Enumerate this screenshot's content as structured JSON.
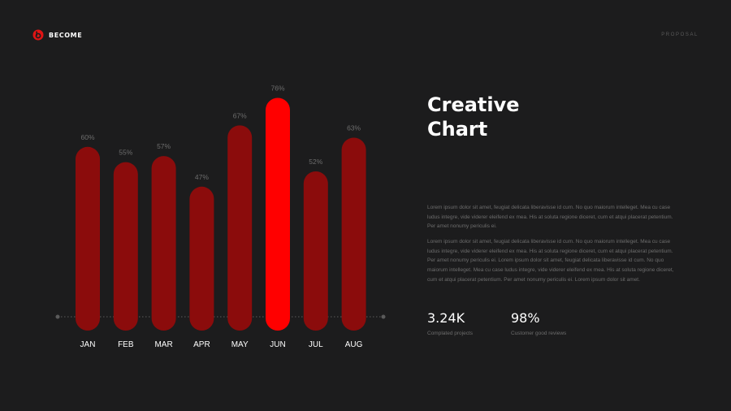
{
  "brand": {
    "name": "BECOME",
    "accent": "#e01414"
  },
  "header": {
    "section_label": "PROPOSAL"
  },
  "heading": {
    "line1": "Creative",
    "line2": "Chart"
  },
  "paragraphs": [
    "Lorem ipsum dolor sit amet, feugiat delicata liberavisse id cum. No quo maiorum intelleget. Mea cu case ludus integre, vide viderer eleifend ex mea. His at soluta regione diceret, cum et atqui placerat petentium. Per amet nonumy periculis ei.",
    "Lorem ipsum dolor sit amet, feugiat delicata liberavisse id cum. No quo maiorum intelleget. Mea cu case ludus integre, vide viderer eleifend ex mea. His at soluta regione diceret, cum et atqui placerat petentium. Per amet nonumy periculis ei. Lorem ipsum dolor sit amet, feugiat delicata liberavisse id cum. No quo maiorum intelleget. Mea cu case ludus integre, vide viderer eleifend ex mea. His at soluta regione diceret, cum et atqui placerat petentium. Per amet nonumy periculis ei. Lorem ipsum dolor sit amet."
  ],
  "stats": [
    {
      "value": "3.24K",
      "label": "Complated projects"
    },
    {
      "value": "98%",
      "label": "Customer good reviews"
    }
  ],
  "chart_data": {
    "type": "bar",
    "title": "",
    "xlabel": "",
    "ylabel": "",
    "categories": [
      "JAN",
      "FEB",
      "MAR",
      "APR",
      "MAY",
      "JUN",
      "JUL",
      "AUG"
    ],
    "values": [
      60,
      55,
      57,
      47,
      67,
      76,
      52,
      63
    ],
    "value_labels": [
      "60%",
      "55%",
      "57%",
      "47%",
      "67%",
      "76%",
      "52%",
      "63%"
    ],
    "highlight": "JUN",
    "colors": {
      "bar": "#8b0c0c",
      "highlight": "#ff0000",
      "value_label": "#6d6d6d",
      "category_label": "#ffffff",
      "baseline": "#5a5a5a"
    },
    "grid": false
  }
}
